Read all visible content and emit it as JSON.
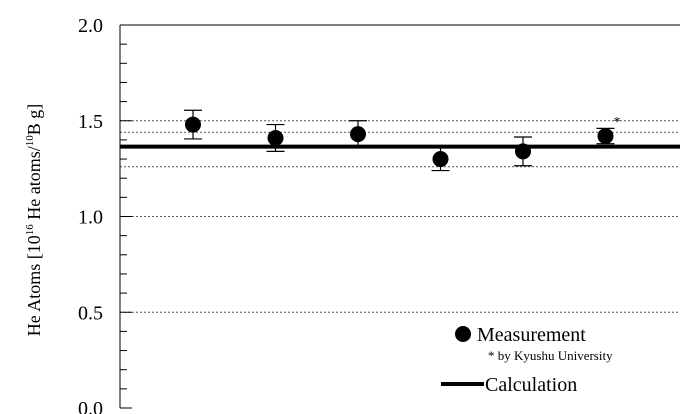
{
  "chart_data": {
    "type": "scatter",
    "ylim": [
      0.0,
      2.0
    ],
    "y_ticks": [
      "0.0",
      "0.5",
      "1.0",
      "1.5",
      "2.0"
    ],
    "ylabel": {
      "prefix": "He Atoms [10",
      "exp1": "16",
      "mid": " He atoms/",
      "exp2": "10",
      "suffix": "B g]"
    },
    "series": [
      {
        "name": "Measurement",
        "x": [
          1,
          2,
          3,
          4,
          5,
          6
        ],
        "values": [
          1.48,
          1.41,
          1.43,
          1.3,
          1.34,
          1.42
        ],
        "errors": [
          0.075,
          0.07,
          0.07,
          0.06,
          0.075,
          0.04
        ]
      }
    ],
    "calculation": {
      "name": "Calculation",
      "value": 1.365,
      "band": [
        1.26,
        1.44
      ],
      "outer": [
        1.5
      ]
    },
    "grid_y": [
      0.5,
      1.0
    ],
    "annotation": "*",
    "annotated_point": 6,
    "legend": {
      "measurement": "Measurement",
      "note": "* by Kyushu University",
      "calculation": "Calculation",
      "position": "bottom-right"
    },
    "colors": {
      "marker": "#000000",
      "line": "#000000",
      "grid": "#555555"
    }
  }
}
